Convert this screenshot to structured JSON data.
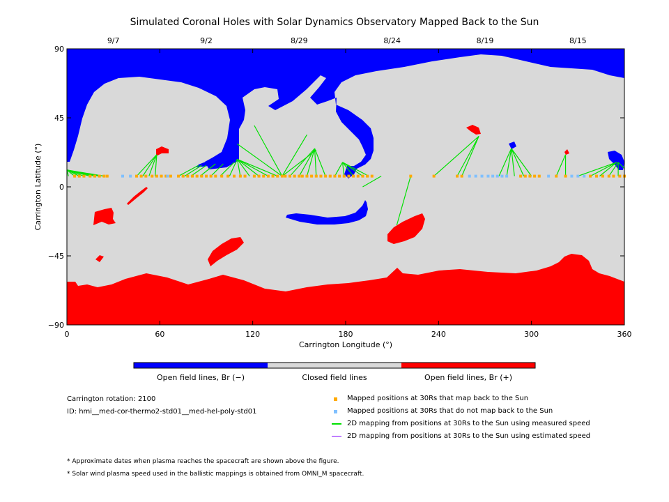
{
  "chart_data": {
    "type": "scatter",
    "title": "Simulated Coronal Holes with Solar Dynamics Observatory Mapped Back to the Sun",
    "xlabel": "Carrington Longitude (°)",
    "ylabel": "Carrington Latitude (°)",
    "xlim": [
      0,
      360
    ],
    "ylim": [
      -90,
      90
    ],
    "x_ticks": [
      0,
      60,
      120,
      180,
      240,
      300,
      360
    ],
    "y_ticks": [
      -90,
      -45,
      0,
      45,
      90
    ],
    "top_axis_dates": [
      {
        "label": "9/7",
        "lon": 30
      },
      {
        "label": "9/2",
        "lon": 90
      },
      {
        "label": "8/29",
        "lon": 150
      },
      {
        "label": "8/24",
        "lon": 210
      },
      {
        "label": "8/19",
        "lon": 270
      },
      {
        "label": "8/15",
        "lon": 330
      }
    ],
    "colors": {
      "open_negative": "#0000ff",
      "closed": "#d9d9d9",
      "open_positive": "#ff0000",
      "mapped": "#ffaa00",
      "not_mapped": "#80c0ff",
      "measured_line": "#00e000",
      "estimated_line": "#c080ff"
    },
    "colorbar": [
      {
        "label": "Open field lines, Br (−)",
        "color": "#0000ff"
      },
      {
        "label": "Closed field lines",
        "color": "#d9d9d9"
      },
      {
        "label": "Open field lines, Br (+)",
        "color": "#ff0000"
      }
    ],
    "mapped_positions_lat": 7,
    "mapped_positions_lon": [
      5,
      8,
      11,
      15,
      18,
      21,
      24,
      26,
      45,
      48,
      51,
      55,
      58,
      61,
      64,
      67,
      72,
      75,
      78,
      81,
      84,
      87,
      90,
      93,
      96,
      100,
      104,
      108,
      112,
      115,
      121,
      124,
      127,
      130,
      133,
      136,
      139,
      141,
      144,
      147,
      150,
      152,
      155,
      158,
      161,
      164,
      167,
      170,
      173,
      176,
      179,
      182,
      185,
      188,
      191,
      194,
      197,
      222,
      237,
      252,
      255,
      293,
      296,
      299,
      302,
      305,
      316,
      322,
      338,
      342,
      346,
      350,
      353,
      357,
      360
    ],
    "unmapped_positions_lon": [
      36,
      41,
      65,
      260,
      264,
      268,
      272,
      275,
      278,
      281,
      284,
      311,
      326,
      330,
      334
    ],
    "measured_mappings": [
      {
        "from": [
          1,
          7
        ],
        "to": [
          0,
          11
        ]
      },
      {
        "from": [
          5,
          7
        ],
        "to": [
          0,
          11
        ]
      },
      {
        "from": [
          8,
          7
        ],
        "to": [
          0,
          11
        ]
      },
      {
        "from": [
          11,
          7
        ],
        "to": [
          0,
          11
        ]
      },
      {
        "from": [
          15,
          7
        ],
        "to": [
          0,
          11
        ]
      },
      {
        "from": [
          18,
          7
        ],
        "to": [
          0,
          11
        ]
      },
      {
        "from": [
          21,
          7
        ],
        "to": [
          0,
          11
        ]
      },
      {
        "from": [
          24,
          7
        ],
        "to": [
          0,
          11
        ]
      },
      {
        "from": [
          45,
          7
        ],
        "to": [
          58,
          21
        ]
      },
      {
        "from": [
          49,
          7
        ],
        "to": [
          58,
          21
        ]
      },
      {
        "from": [
          53,
          7
        ],
        "to": [
          58,
          21
        ]
      },
      {
        "from": [
          57,
          7
        ],
        "to": [
          58,
          21
        ]
      },
      {
        "from": [
          72,
          7
        ],
        "to": [
          85,
          14
        ]
      },
      {
        "from": [
          76,
          7
        ],
        "to": [
          87,
          14
        ]
      },
      {
        "from": [
          80,
          7
        ],
        "to": [
          90,
          14
        ]
      },
      {
        "from": [
          86,
          7
        ],
        "to": [
          96,
          15
        ]
      },
      {
        "from": [
          93,
          7
        ],
        "to": [
          101,
          15
        ]
      },
      {
        "from": [
          99,
          7
        ],
        "to": [
          108,
          16
        ]
      },
      {
        "from": [
          105,
          7
        ],
        "to": [
          110,
          18
        ]
      },
      {
        "from": [
          112,
          7
        ],
        "to": [
          110,
          18
        ]
      },
      {
        "from": [
          118,
          7
        ],
        "to": [
          110,
          18
        ]
      },
      {
        "from": [
          124,
          7
        ],
        "to": [
          110,
          18
        ]
      },
      {
        "from": [
          130,
          7
        ],
        "to": [
          110,
          18
        ]
      },
      {
        "from": [
          136,
          7
        ],
        "to": [
          110,
          18
        ]
      },
      {
        "from": [
          139,
          7
        ],
        "to": [
          110,
          28
        ]
      },
      {
        "from": [
          139,
          7
        ],
        "to": [
          121,
          40
        ]
      },
      {
        "from": [
          139,
          7
        ],
        "to": [
          155,
          34
        ]
      },
      {
        "from": [
          139,
          7
        ],
        "to": [
          161,
          24
        ]
      },
      {
        "from": [
          144,
          7
        ],
        "to": [
          160,
          25
        ]
      },
      {
        "from": [
          150,
          7
        ],
        "to": [
          160,
          25
        ]
      },
      {
        "from": [
          155,
          7
        ],
        "to": [
          160,
          25
        ]
      },
      {
        "from": [
          161,
          7
        ],
        "to": [
          160,
          25
        ]
      },
      {
        "from": [
          167,
          7
        ],
        "to": [
          160,
          25
        ]
      },
      {
        "from": [
          173,
          7
        ],
        "to": [
          178,
          16
        ]
      },
      {
        "from": [
          179,
          7
        ],
        "to": [
          178,
          16
        ]
      },
      {
        "from": [
          185,
          7
        ],
        "to": [
          178,
          16
        ]
      },
      {
        "from": [
          191,
          7
        ],
        "to": [
          178,
          16
        ]
      },
      {
        "from": [
          195,
          7
        ],
        "to": [
          178,
          16
        ]
      },
      {
        "from": [
          191,
          0
        ],
        "to": [
          203,
          7
        ]
      },
      {
        "from": [
          213,
          -25
        ],
        "to": [
          222,
          7
        ]
      },
      {
        "from": [
          237,
          7
        ],
        "to": [
          266,
          33
        ]
      },
      {
        "from": [
          252,
          7
        ],
        "to": [
          266,
          33
        ]
      },
      {
        "from": [
          255,
          7
        ],
        "to": [
          266,
          33
        ]
      },
      {
        "from": [
          279,
          7
        ],
        "to": [
          287,
          25
        ]
      },
      {
        "from": [
          284,
          7
        ],
        "to": [
          287,
          25
        ]
      },
      {
        "from": [
          289,
          7
        ],
        "to": [
          287,
          25
        ]
      },
      {
        "from": [
          295,
          7
        ],
        "to": [
          287,
          25
        ]
      },
      {
        "from": [
          300,
          7
        ],
        "to": [
          287,
          25
        ]
      },
      {
        "from": [
          316,
          7
        ],
        "to": [
          322,
          21
        ]
      },
      {
        "from": [
          322,
          7
        ],
        "to": [
          322,
          21
        ]
      },
      {
        "from": [
          330,
          7
        ],
        "to": [
          355,
          16
        ]
      },
      {
        "from": [
          338,
          7
        ],
        "to": [
          355,
          16
        ]
      },
      {
        "from": [
          344,
          7
        ],
        "to": [
          355,
          16
        ]
      },
      {
        "from": [
          350,
          7
        ],
        "to": [
          356,
          16
        ]
      },
      {
        "from": [
          356,
          7
        ],
        "to": [
          356,
          16
        ]
      },
      {
        "from": [
          360,
          12
        ],
        "to": [
          356,
          16
        ]
      }
    ]
  },
  "info": {
    "rotation": "Carrington rotation: 2100",
    "id": "ID: hmi__med-cor-thermo2-std01__med-hel-poly-std01"
  },
  "legend": {
    "mapped": "Mapped positions at 30Rs that map back to the Sun",
    "not_mapped": "Mapped positions at 30Rs that do not map back to the Sun",
    "measured": "2D mapping from positions at 30Rs to the Sun using measured speed",
    "estimated": "2D mapping from positions at 30Rs to the Sun using estimated speed"
  },
  "footnotes": {
    "dates": "* Approximate dates when plasma reaches the spacecraft are shown above the figure.",
    "speed": "* Solar wind plasma speed used in the ballistic mappings is obtained from OMNI_M spacecraft."
  }
}
